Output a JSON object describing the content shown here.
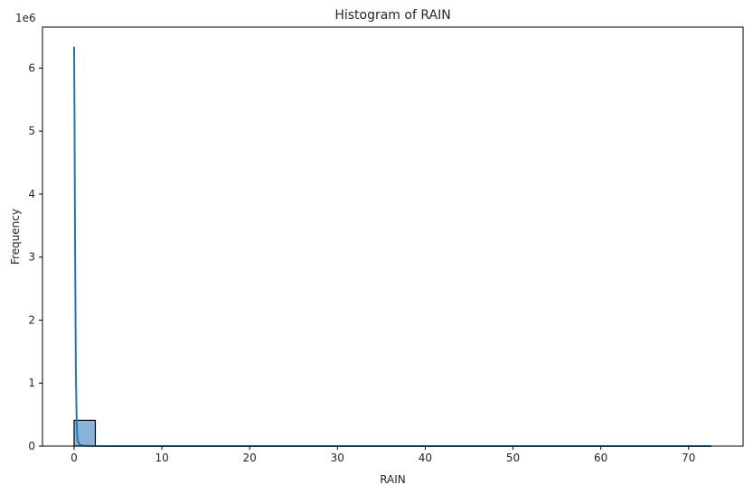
{
  "chart_data": {
    "type": "bar",
    "title": "Histogram of RAIN",
    "xlabel": "RAIN",
    "ylabel": "Frequency",
    "y_scale_label": "1e6",
    "xlim": [
      -3.6,
      76.2
    ],
    "ylim": [
      0,
      6650000
    ],
    "xticks": [
      0,
      10,
      20,
      30,
      40,
      50,
      60,
      70
    ],
    "yticks": [
      0,
      1000000,
      2000000,
      3000000,
      4000000,
      5000000,
      6000000
    ],
    "ytick_labels": [
      "0",
      "1",
      "2",
      "3",
      "4",
      "5",
      "6"
    ],
    "bins": [
      {
        "x0": 0,
        "x1": 2.42,
        "count": 410000
      },
      {
        "x0": 2.42,
        "x1": 72.6,
        "count": 0
      }
    ],
    "kde_line": {
      "x": [
        0,
        0.05,
        0.1,
        0.2,
        0.3,
        0.4,
        0.6,
        1.0,
        2.0,
        5.0,
        72.6
      ],
      "y": [
        6340000,
        5200000,
        3500000,
        1200000,
        350000,
        90000,
        25000,
        8000,
        2000,
        500,
        0
      ]
    },
    "colors": {
      "bar_fill": "#8ab4d6",
      "bar_edge": "#000000",
      "line": "#1f77b4",
      "axis": "#000000"
    },
    "grid": false
  }
}
